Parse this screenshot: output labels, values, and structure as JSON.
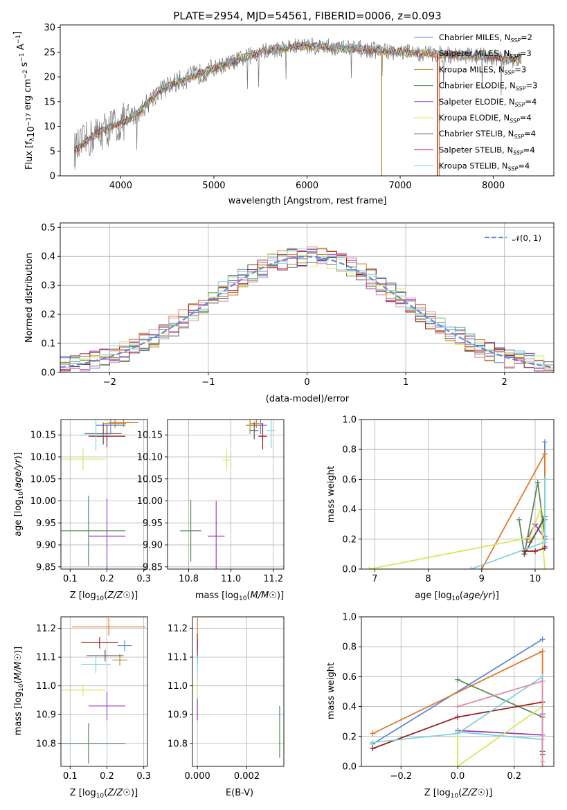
{
  "figure": {
    "title": "PLATE=2954, MJD=54561, FIBERID=0006, z=0.093",
    "colors": {
      "Chabrier MILES": "#5b8bd9",
      "Salpeter MILES": "#e0782a",
      "Kroupa MILES": "#b5832e",
      "Chabrier ELODIE": "#5a8a5a",
      "Salpeter ELODIE": "#9b3fbf",
      "Kroupa ELODIE": "#d4e85a",
      "Chabrier STELIB": "#555555",
      "Salpeter STELIB": "#a01b1b",
      "Kroupa STELIB": "#7fd3e0"
    }
  },
  "chart_data": [
    {
      "id": "spectrum",
      "type": "line",
      "xlabel": "wavelength [Angstrom, rest frame]",
      "ylabel": "Flux [f",
      "ylabel_parts": [
        "Flux [f",
        "λ",
        "10",
        "−17",
        " erg cm",
        "−2",
        " s",
        "−1",
        " A",
        "−1",
        "]"
      ],
      "xlim": [
        3350,
        8650
      ],
      "ylim": [
        0,
        30.5
      ],
      "xticks": [
        4000,
        5000,
        6000,
        7000,
        8000
      ],
      "yticks": [
        0,
        5,
        10,
        15,
        20,
        25,
        30
      ],
      "legend": [
        {
          "name": "Chabrier MILES",
          "sub": "SSP",
          "n": "=2"
        },
        {
          "name": "Salpeter MILES",
          "sub": "SSP",
          "n": "=3"
        },
        {
          "name": "Kroupa MILES",
          "sub": "SSP",
          "n": "=3"
        },
        {
          "name": "Chabrier ELODIE",
          "sub": "SSP",
          "n": "=3"
        },
        {
          "name": "Salpeter ELODIE",
          "sub": "SSP",
          "n": "=4"
        },
        {
          "name": "Kroupa ELODIE",
          "sub": "SSP",
          "n": "=4"
        },
        {
          "name": "Chabrier STELIB",
          "sub": "SSP",
          "n": "=4"
        },
        {
          "name": "Salpeter STELIB",
          "sub": "SSP",
          "n": "=4"
        },
        {
          "name": "Kroupa STELIB",
          "sub": "SSP",
          "n": "=4"
        }
      ],
      "continuum": [
        [
          3500,
          5
        ],
        [
          3700,
          8
        ],
        [
          3900,
          10
        ],
        [
          4050,
          11
        ],
        [
          4200,
          13
        ],
        [
          4400,
          17
        ],
        [
          4600,
          19
        ],
        [
          4900,
          21
        ],
        [
          5200,
          23
        ],
        [
          5500,
          25
        ],
        [
          5800,
          26
        ],
        [
          6000,
          26.3
        ],
        [
          6500,
          25.7
        ],
        [
          7000,
          25
        ],
        [
          7500,
          24.5
        ],
        [
          8000,
          24
        ],
        [
          8300,
          23.5
        ],
        [
          8600,
          23.5
        ]
      ],
      "spikes": [
        {
          "x": 6800,
          "series": "Kroupa MILES",
          "from": 0
        },
        {
          "x": 7400,
          "series": "Salpeter STELIB",
          "from": 0
        },
        {
          "x": 7420,
          "series": "Salpeter MILES",
          "from": 0
        }
      ]
    },
    {
      "id": "residuals",
      "type": "histogram",
      "xlabel": "(data-model)/error",
      "ylabel": "Normed distribution",
      "xlim": [
        -2.5,
        2.5
      ],
      "ylim": [
        0,
        0.515
      ],
      "xticks": [
        -2,
        -1,
        0,
        1,
        2
      ],
      "yticks": [
        0.0,
        0.1,
        0.2,
        0.3,
        0.4,
        0.5
      ],
      "legend": "𝒩(0, 1)",
      "gaussian_color": "#5b8bd9",
      "bin_width": 0.1
    },
    {
      "id": "age-vs-Z",
      "type": "scatter",
      "xlabel": "Z [log",
      "ylabel": "age  [log",
      "xlim": [
        0.075,
        0.31
      ],
      "ylim": [
        9.845,
        10.185
      ],
      "xticks": [
        0.1,
        0.2,
        0.3
      ],
      "yticks": [
        9.85,
        9.9,
        9.95,
        10.0,
        10.05,
        10.1,
        10.15
      ],
      "points": [
        {
          "series": "Chabrier MILES",
          "x": 0.21,
          "y": 10.172,
          "xerr": 0.04,
          "yerr": 0.02
        },
        {
          "series": "Salpeter MILES",
          "x": 0.245,
          "y": 10.178,
          "xerr": 0.04,
          "yerr": 0.01
        },
        {
          "series": "Kroupa MILES",
          "x": 0.222,
          "y": 10.176,
          "xerr": 0.03,
          "yerr": 0.01
        },
        {
          "series": "Chabrier ELODIE",
          "x": 0.15,
          "y": 9.932,
          "xerr": 0.1,
          "yerr": 0.08
        },
        {
          "series": "Salpeter ELODIE",
          "x": 0.2,
          "y": 9.92,
          "xerr": 0.05,
          "yerr": 0.085
        },
        {
          "series": "Kroupa ELODIE",
          "x": 0.135,
          "y": 10.095,
          "xerr": 0.06,
          "yerr": 0.025
        },
        {
          "series": "Chabrier STELIB",
          "x": 0.19,
          "y": 10.153,
          "xerr": 0.05,
          "yerr": 0.025
        },
        {
          "series": "Salpeter STELIB",
          "x": 0.2,
          "y": 10.147,
          "xerr": 0.05,
          "yerr": 0.025
        },
        {
          "series": "Kroupa STELIB",
          "x": 0.17,
          "y": 10.15,
          "xerr": 0.04,
          "yerr": 0.035
        }
      ]
    },
    {
      "id": "age-vs-mass",
      "type": "scatter",
      "xlabel": "mass [log",
      "xlim": [
        10.7,
        11.25
      ],
      "ylim": [
        9.845,
        10.185
      ],
      "xticks": [
        10.8,
        11.0,
        11.2
      ],
      "yticks": [
        9.85,
        9.9,
        9.95,
        10.0,
        10.05,
        10.1,
        10.15
      ],
      "points": [
        {
          "series": "Chabrier MILES",
          "x": 11.14,
          "y": 10.172,
          "xerr": 0.03,
          "yerr": 0.02
        },
        {
          "series": "Salpeter MILES",
          "x": 11.12,
          "y": 10.176,
          "xerr": 0.03,
          "yerr": 0.01
        },
        {
          "series": "Kroupa MILES",
          "x": 11.09,
          "y": 10.172,
          "xerr": 0.02,
          "yerr": 0.02
        },
        {
          "series": "Chabrier ELODIE",
          "x": 10.81,
          "y": 9.932,
          "xerr": 0.05,
          "yerr": 0.07
        },
        {
          "series": "Salpeter ELODIE",
          "x": 10.93,
          "y": 9.92,
          "xerr": 0.04,
          "yerr": 0.08
        },
        {
          "series": "Kroupa ELODIE",
          "x": 10.98,
          "y": 10.093,
          "xerr": 0.02,
          "yerr": 0.025
        },
        {
          "series": "Chabrier STELIB",
          "x": 11.11,
          "y": 10.16,
          "xerr": 0.02,
          "yerr": 0.02
        },
        {
          "series": "Salpeter STELIB",
          "x": 11.15,
          "y": 10.147,
          "xerr": 0.02,
          "yerr": 0.03
        },
        {
          "series": "Kroupa STELIB",
          "x": 11.19,
          "y": 10.16,
          "xerr": 0.02,
          "yerr": 0.04
        }
      ]
    },
    {
      "id": "weight-vs-age",
      "type": "line",
      "xlabel": "age  [log",
      "ylabel": "mass weight",
      "xlim": [
        6.75,
        10.35
      ],
      "ylim": [
        0,
        1.0
      ],
      "xticks": [
        7,
        8,
        9,
        10
      ],
      "yticks": [
        0.0,
        0.2,
        0.4,
        0.6,
        0.8,
        1.0
      ],
      "series": [
        {
          "name": "Chabrier MILES",
          "x": [
            10.18,
            10.18
          ],
          "y": [
            0.15,
            0.85
          ]
        },
        {
          "name": "Salpeter MILES",
          "x": [
            9.0,
            10.18,
            10.18
          ],
          "y": [
            0.0,
            0.77,
            0.22
          ]
        },
        {
          "name": "Kroupa MILES",
          "x": [
            9.9,
            10.18
          ],
          "y": [
            0.18,
            0.33
          ]
        },
        {
          "name": "Chabrier ELODIE",
          "x": [
            9.7,
            9.8,
            10.05,
            10.18
          ],
          "y": [
            0.33,
            0.1,
            0.58,
            0.22
          ]
        },
        {
          "name": "Salpeter ELODIE",
          "x": [
            9.85,
            10.0,
            10.18
          ],
          "y": [
            0.2,
            0.3,
            0.2
          ]
        },
        {
          "name": "Kroupa ELODIE",
          "x": [
            6.9,
            9.9,
            10.1,
            10.18
          ],
          "y": [
            0.0,
            0.21,
            0.4,
            0.0
          ]
        },
        {
          "name": "Chabrier STELIB",
          "x": [
            9.8,
            10.18
          ],
          "y": [
            0.1,
            0.35
          ]
        },
        {
          "name": "Salpeter STELIB",
          "x": [
            9.8,
            10.0,
            10.18
          ],
          "y": [
            0.12,
            0.12,
            0.14
          ]
        },
        {
          "name": "Kroupa STELIB",
          "x": [
            8.8,
            10.18,
            10.18
          ],
          "y": [
            0.0,
            0.18,
            0.6
          ]
        }
      ]
    },
    {
      "id": "mass-vs-Z",
      "type": "scatter",
      "xlabel": "Z [log",
      "ylabel": "mass [log",
      "xlim": [
        0.075,
        0.31
      ],
      "ylim": [
        10.72,
        11.24
      ],
      "xticks": [
        0.1,
        0.2,
        0.3
      ],
      "yticks": [
        10.8,
        10.9,
        11.0,
        11.1,
        11.2
      ],
      "points": [
        {
          "series": "Chabrier MILES",
          "x": 0.248,
          "y": 11.14,
          "xerr": 0.02,
          "yerr": 0.02
        },
        {
          "series": "Salpeter MILES",
          "x": 0.205,
          "y": 11.205,
          "xerr": 0.1,
          "yerr": 0.03
        },
        {
          "series": "Kroupa MILES",
          "x": 0.235,
          "y": 11.09,
          "xerr": 0.02,
          "yerr": 0.02
        },
        {
          "series": "Chabrier ELODIE",
          "x": 0.15,
          "y": 10.8,
          "xerr": 0.1,
          "yerr": 0.07
        },
        {
          "series": "Salpeter ELODIE",
          "x": 0.2,
          "y": 10.93,
          "xerr": 0.05,
          "yerr": 0.05
        },
        {
          "series": "Kroupa ELODIE",
          "x": 0.135,
          "y": 10.985,
          "xerr": 0.06,
          "yerr": 0.02
        },
        {
          "series": "Chabrier STELIB",
          "x": 0.195,
          "y": 11.105,
          "xerr": 0.05,
          "yerr": 0.02
        },
        {
          "series": "Salpeter STELIB",
          "x": 0.18,
          "y": 11.15,
          "xerr": 0.05,
          "yerr": 0.02
        },
        {
          "series": "Kroupa STELIB",
          "x": 0.17,
          "y": 11.075,
          "xerr": 0.04,
          "yerr": 0.03
        }
      ]
    },
    {
      "id": "mass-vs-ebv",
      "type": "scatter",
      "xlabel": "E(B-V)",
      "xlim": [
        -0.0002,
        0.0035
      ],
      "ylim": [
        10.72,
        11.24
      ],
      "xticks": [
        0.0,
        0.002
      ],
      "yticks": [
        10.8,
        10.9,
        11.0,
        11.1,
        11.2
      ],
      "points": [
        {
          "series": "Chabrier MILES",
          "x": 0.0,
          "y": 11.14,
          "xerr": 0,
          "yerr": 0.02
        },
        {
          "series": "Salpeter MILES",
          "x": 0.0,
          "y": 11.205,
          "xerr": 0,
          "yerr": 0.03
        },
        {
          "series": "Kroupa MILES",
          "x": 0.0,
          "y": 11.09,
          "xerr": 0,
          "yerr": 0.02
        },
        {
          "series": "Chabrier ELODIE",
          "x": 0.00333,
          "y": 10.84,
          "xerr": 0,
          "yerr": 0.09
        },
        {
          "series": "Salpeter ELODIE",
          "x": 0.0,
          "y": 10.92,
          "xerr": 0,
          "yerr": 0.04
        },
        {
          "series": "Kroupa ELODIE",
          "x": 0.0,
          "y": 10.985,
          "xerr": 0,
          "yerr": 0.03
        },
        {
          "series": "Chabrier STELIB",
          "x": 0.0,
          "y": 11.105,
          "xerr": 0,
          "yerr": 0.02
        },
        {
          "series": "Salpeter STELIB",
          "x": 0.0,
          "y": 11.15,
          "xerr": 0,
          "yerr": 0.03
        },
        {
          "series": "Kroupa STELIB",
          "x": 0.0,
          "y": 11.075,
          "xerr": 0,
          "yerr": 0.03
        }
      ]
    },
    {
      "id": "weight-vs-Z",
      "type": "line",
      "xlabel": "Z [log",
      "ylabel": "mass weight",
      "xlim": [
        -0.34,
        0.34
      ],
      "ylim": [
        0,
        1.0
      ],
      "xticks": [
        -0.2,
        0.0,
        0.2
      ],
      "yticks": [
        0.0,
        0.2,
        0.4,
        0.6,
        0.8,
        1.0
      ],
      "series": [
        {
          "name": "Chabrier MILES",
          "x": [
            -0.3,
            0.3
          ],
          "y": [
            0.15,
            0.85
          ]
        },
        {
          "name": "Salpeter MILES",
          "x": [
            -0.3,
            0.3,
            0.3
          ],
          "y": [
            0.22,
            0.77,
            0.0
          ]
        },
        {
          "name": "Kroupa MILES",
          "x": [
            0.3,
            0.3
          ],
          "y": [
            0.1,
            0.33
          ]
        },
        {
          "name": "Chabrier ELODIE",
          "x": [
            0.0,
            0.3,
            0.3
          ],
          "y": [
            0.58,
            0.33,
            0.1
          ]
        },
        {
          "name": "Salpeter ELODIE",
          "x": [
            0.0,
            0.3
          ],
          "y": [
            0.24,
            0.21
          ]
        },
        {
          "name": "Kroupa ELODIE",
          "x": [
            0.0,
            0.0,
            0.3
          ],
          "y": [
            0.2,
            0.0,
            0.4
          ]
        },
        {
          "name": "Chabrier STELIB",
          "x": [
            0.3,
            0.3
          ],
          "y": [
            0.35,
            0.08
          ]
        },
        {
          "name": "Salpeter STELIB",
          "x": [
            -0.3,
            0.0,
            0.3
          ],
          "y": [
            0.12,
            0.33,
            0.43
          ]
        },
        {
          "name": "Kroupa STELIB",
          "x": [
            -0.3,
            0.0,
            0.3,
            0.3,
            0.0
          ],
          "y": [
            0.16,
            0.22,
            0.6,
            0.18,
            0.23
          ]
        },
        {
          "name": "Pink",
          "x": [
            0.0,
            0.3,
            0.3
          ],
          "y": [
            0.4,
            0.57,
            0.03
          ]
        }
      ]
    }
  ]
}
